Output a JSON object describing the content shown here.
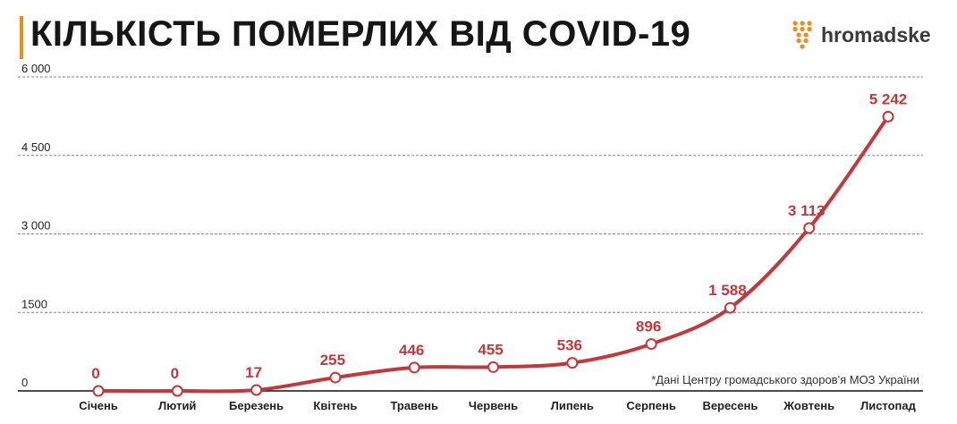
{
  "header": {
    "title": "КІЛЬКІСТЬ ПОМЕРЛИХ ВІД COVID-19",
    "accent_color": "#f28a1c"
  },
  "logo": {
    "text": "hromadske",
    "icon": "hromadske-dots-icon",
    "color": "#f28a1c"
  },
  "source_note": "*Дані Центру громадського здоров'я МОЗ України",
  "chart_data": {
    "type": "line",
    "title": "КІЛЬКІСТЬ ПОМЕРЛИХ ВІД COVID-19",
    "xlabel": "",
    "ylabel": "",
    "categories": [
      "Січень",
      "Лютий",
      "Березень",
      "Квітень",
      "Травень",
      "Червень",
      "Липень",
      "Серпень",
      "Вересень",
      "Жовтень",
      "Листопад"
    ],
    "series": [
      {
        "values": [
          0,
          0,
          17,
          255,
          446,
          455,
          536,
          896,
          1588,
          3113,
          5242
        ],
        "labels": [
          "0",
          "0",
          "17",
          "255",
          "446",
          "455",
          "536",
          "896",
          "1 588",
          "3 113",
          "5 242"
        ]
      }
    ],
    "ylim": [
      0,
      6000
    ],
    "yticks": [
      0,
      1500,
      3000,
      4500,
      6000
    ],
    "ytick_labels": [
      "0",
      "1500",
      "3 000",
      "4 500",
      "6 000"
    ],
    "grid": "horizontal-dashed",
    "line_color": "#c1393c",
    "legend": "none"
  }
}
